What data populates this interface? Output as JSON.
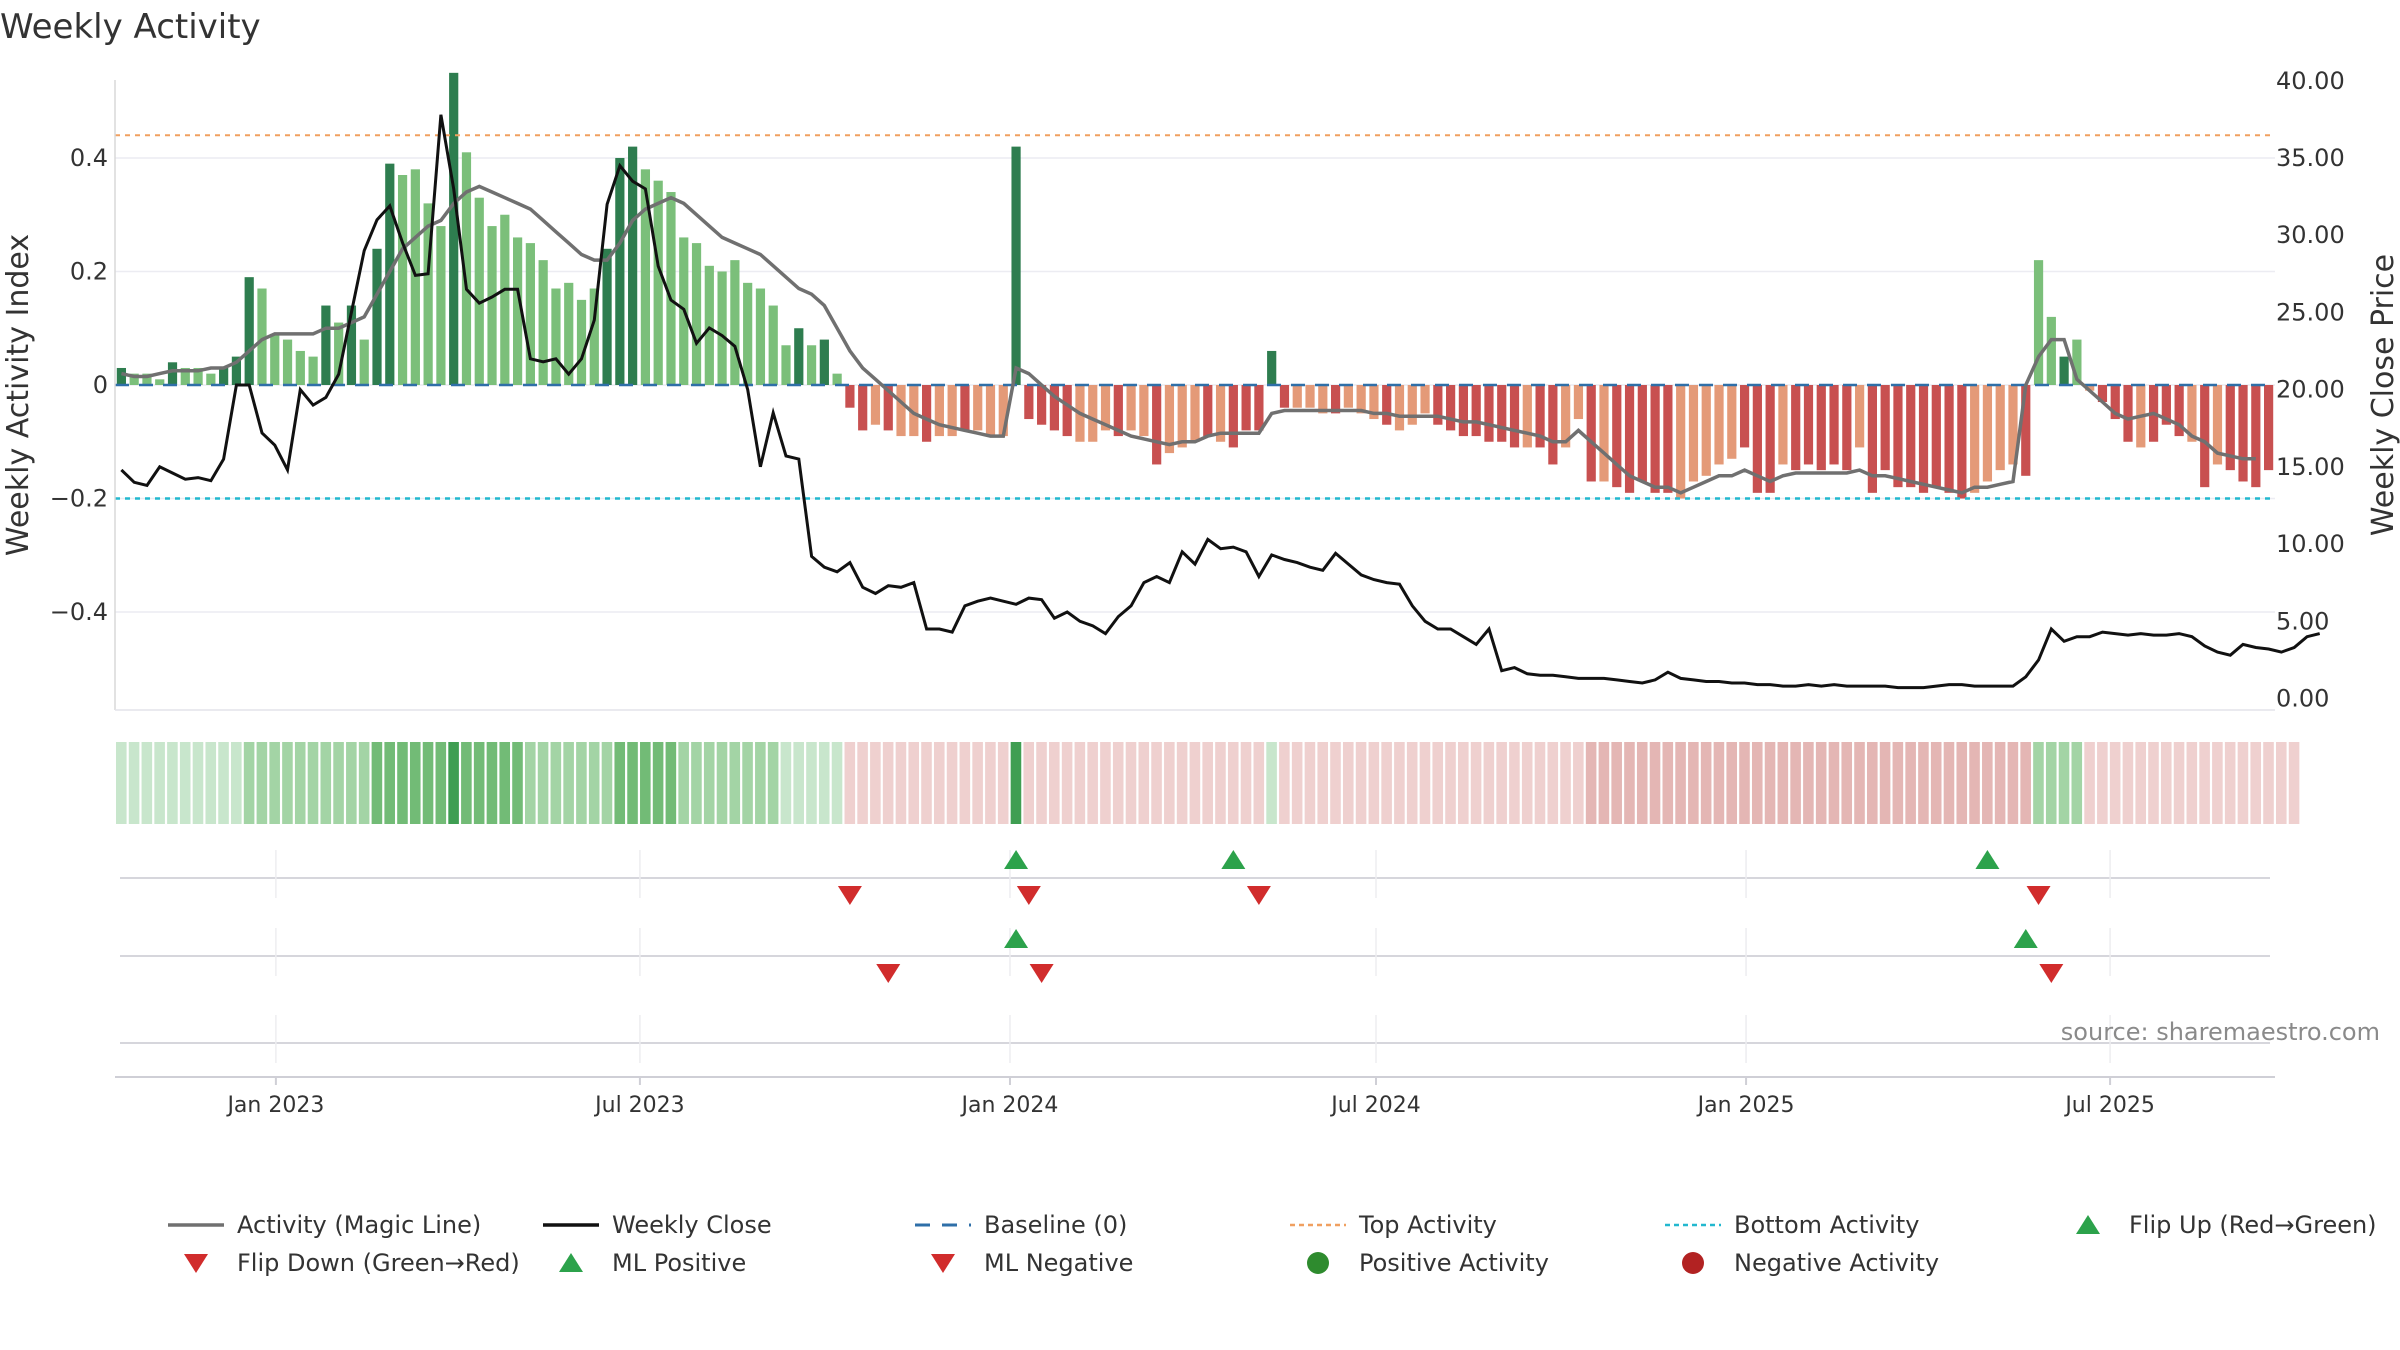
{
  "chart_data": {
    "type": "bar",
    "title": "Weekly Activity",
    "ylabel_left": "Weekly Activity Index",
    "ylabel_right": "Weekly Close Price",
    "yticks_left": [
      "0.4",
      "0.2",
      "0",
      "−0.2",
      "−0.4"
    ],
    "yticks_right": [
      "40.00",
      "35.00",
      "30.00",
      "25.00",
      "20.00",
      "15.00",
      "10.00",
      "5.00",
      "0.00"
    ],
    "xticks": [
      "Jan 2023",
      "Jul 2023",
      "Jan 2024",
      "Jul 2024",
      "Jan 2025",
      "Jul 2025"
    ],
    "xtick_dates": [
      "2023-01-01",
      "2023-07-01",
      "2024-01-01",
      "2024-07-01",
      "2025-01-01",
      "2025-07-01"
    ],
    "x_range": [
      "2022-10-13",
      "2025-09-21"
    ],
    "ylim_left": [
      -0.555,
      0.555
    ],
    "ylim_right": [
      -0.1,
      40.7
    ],
    "top_activity": 0.44,
    "bottom_activity": -0.2,
    "baseline": 0,
    "source": "source: sharemaestro.com",
    "colors": {
      "pos_strong": "#2e7d4f",
      "pos_light": "#7bbf7a",
      "neg_strong": "#c85050",
      "neg_light": "#e49a78",
      "magic_line": "#707070",
      "close_line": "#111111",
      "baseline": "#2f6fa8",
      "top": "#f0a060",
      "bottom": "#22b8cf",
      "flip_up": "#2ca24b",
      "flip_down": "#d12c2c"
    },
    "activity_values": [
      0.03,
      0.02,
      0.02,
      0.01,
      0.04,
      0.03,
      0.03,
      0.02,
      0.03,
      0.05,
      0.19,
      0.17,
      0.09,
      0.08,
      0.06,
      0.05,
      0.14,
      0.11,
      0.14,
      0.08,
      0.24,
      0.39,
      0.37,
      0.38,
      0.32,
      0.28,
      0.55,
      0.41,
      0.33,
      0.28,
      0.3,
      0.26,
      0.25,
      0.22,
      0.17,
      0.18,
      0.15,
      0.17,
      0.24,
      0.4,
      0.42,
      0.38,
      0.36,
      0.34,
      0.26,
      0.25,
      0.21,
      0.2,
      0.22,
      0.18,
      0.17,
      0.14,
      0.07,
      0.1,
      0.07,
      0.08,
      0.02,
      -0.04,
      -0.08,
      -0.07,
      -0.08,
      -0.09,
      -0.09,
      -0.1,
      -0.09,
      -0.09,
      -0.08,
      -0.08,
      -0.09,
      -0.09,
      0.42,
      -0.06,
      -0.07,
      -0.08,
      -0.09,
      -0.1,
      -0.1,
      -0.08,
      -0.09,
      -0.08,
      -0.09,
      -0.14,
      -0.12,
      -0.11,
      -0.1,
      -0.09,
      -0.1,
      -0.11,
      -0.08,
      -0.08,
      0.06,
      -0.04,
      -0.04,
      -0.04,
      -0.05,
      -0.05,
      -0.04,
      -0.05,
      -0.06,
      -0.07,
      -0.08,
      -0.07,
      -0.05,
      -0.07,
      -0.08,
      -0.09,
      -0.09,
      -0.1,
      -0.1,
      -0.11,
      -0.11,
      -0.11,
      -0.14,
      -0.11,
      -0.06,
      -0.17,
      -0.17,
      -0.18,
      -0.19,
      -0.17,
      -0.19,
      -0.19,
      -0.2,
      -0.17,
      -0.16,
      -0.14,
      -0.13,
      -0.11,
      -0.19,
      -0.19,
      -0.14,
      -0.15,
      -0.14,
      -0.15,
      -0.14,
      -0.15,
      -0.11,
      -0.19,
      -0.15,
      -0.18,
      -0.18,
      -0.19,
      -0.18,
      -0.19,
      -0.2,
      -0.19,
      -0.17,
      -0.15,
      -0.14,
      -0.16,
      0.22,
      0.12,
      0.05,
      0.08,
      -0.01,
      -0.03,
      -0.06,
      -0.1,
      -0.11,
      -0.1,
      -0.07,
      -0.09,
      -0.1,
      -0.18,
      -0.14,
      -0.15,
      -0.17,
      -0.18,
      -0.15
    ],
    "activity_strength": [
      1,
      0,
      0,
      0,
      1,
      0,
      0,
      0,
      1,
      1,
      1,
      0,
      0,
      0,
      0,
      0,
      1,
      0,
      1,
      0,
      1,
      1,
      0,
      0,
      0,
      0,
      1,
      0,
      0,
      0,
      0,
      0,
      0,
      0,
      0,
      0,
      0,
      0,
      1,
      1,
      1,
      0,
      0,
      0,
      0,
      0,
      0,
      0,
      0,
      0,
      0,
      0,
      0,
      1,
      0,
      1,
      0,
      1,
      1,
      0,
      1,
      0,
      0,
      1,
      0,
      0,
      1,
      0,
      0,
      0,
      1,
      1,
      1,
      1,
      1,
      0,
      0,
      0,
      1,
      0,
      0,
      1,
      0,
      0,
      0,
      1,
      0,
      1,
      1,
      1,
      1,
      1,
      0,
      0,
      0,
      1,
      0,
      0,
      0,
      1,
      0,
      0,
      0,
      1,
      1,
      1,
      1,
      1,
      1,
      1,
      0,
      1,
      1,
      0,
      0,
      1,
      0,
      1,
      1,
      1,
      1,
      1,
      0,
      0,
      0,
      0,
      0,
      1,
      1,
      1,
      0,
      1,
      1,
      1,
      1,
      1,
      0,
      1,
      1,
      1,
      1,
      1,
      1,
      1,
      1,
      0,
      0,
      0,
      0,
      1,
      0,
      0,
      1,
      0,
      0,
      1,
      1,
      1,
      0,
      1,
      1,
      1,
      0,
      1,
      0,
      1,
      1,
      1,
      1
    ],
    "magic_line": [
      0.02,
      0.015,
      0.015,
      0.02,
      0.025,
      0.025,
      0.025,
      0.03,
      0.03,
      0.04,
      0.06,
      0.08,
      0.09,
      0.09,
      0.09,
      0.09,
      0.1,
      0.1,
      0.11,
      0.12,
      0.16,
      0.2,
      0.24,
      0.26,
      0.28,
      0.29,
      0.32,
      0.34,
      0.35,
      0.34,
      0.33,
      0.32,
      0.31,
      0.29,
      0.27,
      0.25,
      0.23,
      0.22,
      0.22,
      0.25,
      0.29,
      0.31,
      0.32,
      0.33,
      0.32,
      0.3,
      0.28,
      0.26,
      0.25,
      0.24,
      0.23,
      0.21,
      0.19,
      0.17,
      0.16,
      0.14,
      0.1,
      0.06,
      0.03,
      0.01,
      -0.01,
      -0.03,
      -0.05,
      -0.06,
      -0.07,
      -0.075,
      -0.08,
      -0.085,
      -0.09,
      -0.09,
      0.03,
      0.02,
      0.0,
      -0.02,
      -0.035,
      -0.05,
      -0.06,
      -0.07,
      -0.08,
      -0.09,
      -0.095,
      -0.1,
      -0.105,
      -0.1,
      -0.1,
      -0.09,
      -0.085,
      -0.085,
      -0.085,
      -0.085,
      -0.05,
      -0.045,
      -0.045,
      -0.045,
      -0.045,
      -0.045,
      -0.045,
      -0.045,
      -0.05,
      -0.05,
      -0.055,
      -0.055,
      -0.055,
      -0.055,
      -0.06,
      -0.065,
      -0.065,
      -0.07,
      -0.075,
      -0.08,
      -0.085,
      -0.09,
      -0.1,
      -0.1,
      -0.08,
      -0.1,
      -0.12,
      -0.14,
      -0.16,
      -0.17,
      -0.18,
      -0.18,
      -0.19,
      -0.18,
      -0.17,
      -0.16,
      -0.16,
      -0.15,
      -0.16,
      -0.17,
      -0.16,
      -0.155,
      -0.155,
      -0.155,
      -0.155,
      -0.155,
      -0.15,
      -0.16,
      -0.16,
      -0.165,
      -0.17,
      -0.175,
      -0.18,
      -0.185,
      -0.19,
      -0.18,
      -0.18,
      -0.175,
      -0.17,
      0.0,
      0.05,
      0.08,
      0.08,
      0.01,
      -0.01,
      -0.03,
      -0.05,
      -0.06,
      -0.055,
      -0.05,
      -0.06,
      -0.07,
      -0.09,
      -0.1,
      -0.12,
      -0.125,
      -0.13,
      -0.13
    ],
    "close_prices": [
      14.8,
      14.0,
      13.8,
      15.0,
      14.6,
      14.2,
      14.3,
      14.1,
      15.5,
      20.3,
      20.3,
      17.2,
      16.4,
      14.8,
      20.0,
      19.0,
      19.5,
      21.0,
      25.0,
      29.0,
      31.0,
      31.9,
      29.5,
      27.4,
      27.5,
      37.8,
      33.0,
      26.5,
      25.6,
      26.0,
      26.5,
      26.5,
      22.0,
      21.8,
      22.0,
      21.0,
      22.0,
      24.5,
      32.0,
      34.5,
      33.5,
      33.0,
      28.0,
      25.8,
      25.2,
      23.0,
      24.0,
      23.5,
      22.8,
      20.0,
      15.0,
      18.5,
      15.7,
      15.5,
      9.2,
      8.5,
      8.2,
      8.8,
      7.2,
      6.8,
      7.3,
      7.2,
      7.5,
      4.5,
      4.5,
      4.3,
      6.0,
      6.3,
      6.5,
      6.3,
      6.1,
      6.5,
      6.4,
      5.2,
      5.6,
      5.0,
      4.7,
      4.2,
      5.3,
      6.0,
      7.5,
      7.9,
      7.5,
      9.5,
      8.7,
      10.3,
      9.7,
      9.8,
      9.5,
      7.9,
      9.3,
      9.0,
      8.8,
      8.5,
      8.3,
      9.4,
      8.7,
      8.0,
      7.7,
      7.5,
      7.4,
      6.0,
      5.0,
      4.5,
      4.5,
      4.0,
      3.5,
      4.5,
      1.8,
      2.0,
      1.6,
      1.5,
      1.5,
      1.4,
      1.3,
      1.3,
      1.3,
      1.2,
      1.1,
      1.0,
      1.2,
      1.7,
      1.3,
      1.2,
      1.1,
      1.1,
      1.0,
      1.0,
      0.9,
      0.9,
      0.8,
      0.8,
      0.9,
      0.8,
      0.9,
      0.8,
      0.8,
      0.8,
      0.8,
      0.7,
      0.7,
      0.7,
      0.8,
      0.9,
      0.9,
      0.8,
      0.8,
      0.8,
      0.8,
      1.4,
      2.5,
      4.5,
      3.7,
      4.0,
      4.0,
      4.3,
      4.2,
      4.1,
      4.2,
      4.1,
      4.1,
      4.2,
      4.0,
      3.4,
      3.0,
      2.8,
      3.5,
      3.3,
      3.2,
      3.0,
      3.3,
      4.0,
      4.2
    ],
    "strip_levels": [
      1,
      1,
      1,
      1,
      1,
      1,
      1,
      1,
      1,
      1,
      2,
      2,
      2,
      2,
      2,
      2,
      2,
      2,
      2,
      2,
      3,
      3,
      3,
      3,
      3,
      3,
      4,
      3,
      3,
      3,
      3,
      3,
      2,
      2,
      2,
      2,
      2,
      2,
      2,
      3,
      3,
      3,
      3,
      3,
      2,
      2,
      2,
      2,
      2,
      2,
      2,
      2,
      1,
      1,
      1,
      1,
      1,
      -1,
      -1,
      -1,
      -1,
      -1,
      -1,
      -1,
      -1,
      -1,
      -1,
      -1,
      -1,
      -1,
      4,
      -1,
      -1,
      -1,
      -1,
      -1,
      -1,
      -1,
      -1,
      -1,
      -1,
      -1,
      -1,
      -1,
      -1,
      -1,
      -1,
      -1,
      -1,
      -1,
      1,
      -1,
      -1,
      -1,
      -1,
      -1,
      -1,
      -1,
      -1,
      -1,
      -1,
      -1,
      -1,
      -1,
      -1,
      -1,
      -1,
      -1,
      -1,
      -1,
      -1,
      -1,
      -1,
      -1,
      -1,
      -2,
      -2,
      -2,
      -2,
      -2,
      -2,
      -2,
      -2,
      -2,
      -2,
      -2,
      -2,
      -2,
      -2,
      -2,
      -2,
      -2,
      -2,
      -2,
      -2,
      -2,
      -2,
      -2,
      -2,
      -2,
      -2,
      -2,
      -2,
      -2,
      -2,
      -2,
      -2,
      -2,
      -2,
      -2,
      2,
      2,
      2,
      2,
      -1,
      -1,
      -1,
      -1,
      -1,
      -1,
      -1,
      -1,
      -1,
      -1,
      -1,
      -1,
      -1,
      -1,
      -1,
      -1,
      -1
    ],
    "flip_up_weeks": [
      70,
      87,
      146
    ],
    "flip_down_weeks": [
      57,
      71,
      89,
      150
    ],
    "ml_positive_weeks": [
      70,
      149
    ],
    "ml_negative_weeks": [
      60,
      72,
      151
    ],
    "legend": [
      {
        "label": "Activity (Magic Line)",
        "kind": "line",
        "color": "#707070"
      },
      {
        "label": "Weekly Close",
        "kind": "line",
        "color": "#111111"
      },
      {
        "label": "Baseline (0)",
        "kind": "dash",
        "color": "#2f6fa8"
      },
      {
        "label": "Top Activity",
        "kind": "dot",
        "color": "#f0a060"
      },
      {
        "label": "Bottom Activity",
        "kind": "dot",
        "color": "#22b8cf"
      },
      {
        "label": "Flip Up (Red→Green)",
        "kind": "tri-up",
        "color": "#2ca24b"
      },
      {
        "label": "Flip Down (Green→Red)",
        "kind": "tri-down",
        "color": "#d12c2c"
      },
      {
        "label": "ML Positive",
        "kind": "tri-up",
        "color": "#2ca24b"
      },
      {
        "label": "ML Negative",
        "kind": "tri-down",
        "color": "#d12c2c"
      },
      {
        "label": "Positive Activity",
        "kind": "circle",
        "color": "#2e8b2e"
      },
      {
        "label": "Negative Activity",
        "kind": "circle",
        "color": "#b22222"
      }
    ]
  }
}
